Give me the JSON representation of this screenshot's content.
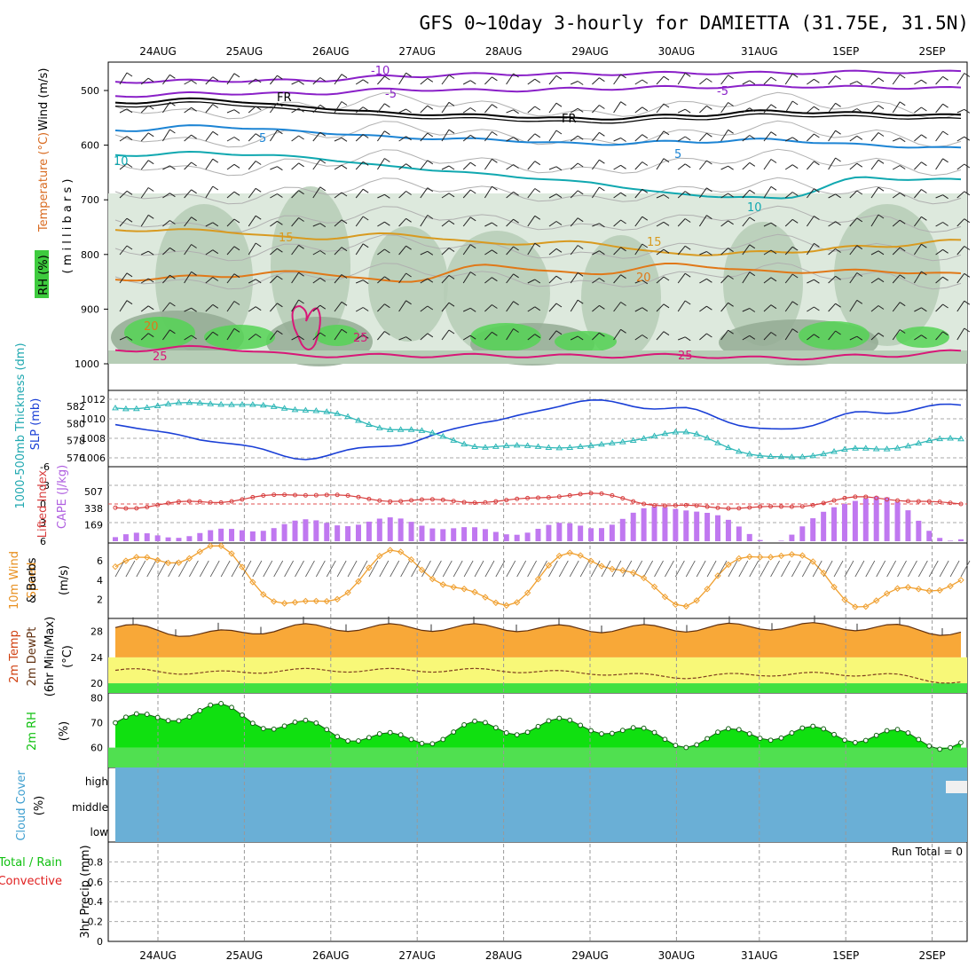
{
  "title": "GFS 0~10day 3-hourly for DAMIETTA (31.75E, 31.5N)",
  "dates": [
    "24AUG",
    "25AUG",
    "26AUG",
    "27AUG",
    "28AUG",
    "29AUG",
    "30AUG",
    "31AUG",
    "1SEP",
    "2SEP"
  ],
  "colors": {
    "rh_light": "#dde9dd",
    "rh_mid": "#b6cdb6",
    "rh_dark": "#94ab94",
    "rh_green": "#55d455",
    "slp": "#1a3fd6",
    "thickness": "#30b8b8",
    "lifted": "#d84040",
    "cape": "#c078f0",
    "wind10": "#f0a030",
    "temp_fill": "#f8a838",
    "temp_max": "#e85a10",
    "dew_fill": "#f8f878",
    "rh2m": "#10e010",
    "rh2m_base": "#50e050",
    "cloud": "#6aafd6"
  },
  "panels": {
    "upper": {
      "ylabel_rh": "RH (%)",
      "ylabel_temp": "Temperature (°C)",
      "ylabel_wind": "Wind (m/s)",
      "ylabel_levels": "( m i l l i b a r s )",
      "ticks": [
        "500",
        "600",
        "700",
        "800",
        "900",
        "1000"
      ],
      "contour_labels": {
        "m10": "-10",
        "m5a": "-5",
        "m5b": "-5",
        "fra": "FR",
        "frb": "FR",
        "p5a": "5",
        "p5b": "5",
        "p10a": "10",
        "p10b": "10",
        "p15a": "15",
        "p15b": "15",
        "p20a": "20",
        "p20b": "20",
        "p25a": "25",
        "p25b": "25",
        "p25c": "25"
      }
    },
    "slp": {
      "ylabel_thick": "1000-500mb Thickness (dm)",
      "ylabel_slp": "SLP (mb)",
      "ticks_left": [
        "582",
        "580",
        "578",
        "576"
      ],
      "ticks_right": [
        "1012",
        "1010",
        "1008",
        "1006"
      ]
    },
    "cape": {
      "ylabel_li": "Lifted Index",
      "ylabel_cape": "CAPE (J/kg)",
      "ticks_left": [
        "-6",
        "-3",
        "0",
        "3",
        "6"
      ],
      "ticks_right": [
        "507",
        "338",
        "169"
      ]
    },
    "wind10": {
      "ylabel_a": "10m Wind",
      "ylabel_b": "Speed",
      "ylabel_c": "& Barbs",
      "unit": "(m/s)",
      "ticks": [
        "6",
        "4",
        "2"
      ]
    },
    "temp2m": {
      "ylabel_a": "2m Temp",
      "ylabel_b": "2m DewPt",
      "ylabel_c": "(6hr Min/Max)",
      "unit": "(°C)",
      "ticks": [
        "28",
        "24",
        "20"
      ]
    },
    "rh2m": {
      "ylabel": "2m RH",
      "unit": "(%)",
      "ticks": [
        "80",
        "70",
        "60"
      ]
    },
    "cloud": {
      "ylabel": "Cloud Cover",
      "unit": "(%)",
      "ticks": [
        "high",
        "middle",
        "low"
      ]
    },
    "precip": {
      "ylabel_a": "Total / Rain",
      "ylabel_b": "Convective",
      "ylabel_c": "3hr Precip (mm)",
      "run_total": "Run Total = 0",
      "ticks": [
        "0.8",
        "0.6",
        "0.4",
        "0.2",
        "0"
      ]
    }
  },
  "chart_data": [
    {
      "type": "line",
      "name": "upper-air cross-section",
      "x": [
        "24AUG",
        "25AUG",
        "26AUG",
        "27AUG",
        "28AUG",
        "29AUG",
        "30AUG",
        "31AUG",
        "1SEP",
        "2SEP"
      ],
      "ylim": [
        1000,
        450
      ],
      "series": [
        {
          "name": "-10°C level (mb)",
          "values": [
            484,
            482,
            482,
            474,
            470,
            470,
            468,
            468,
            466,
            466
          ]
        },
        {
          "name": "-5°C level (mb)",
          "values": [
            510,
            505,
            506,
            498,
            500,
            497,
            494,
            492,
            494,
            496
          ]
        },
        {
          "name": "FR level (mb)",
          "values": [
            522,
            516,
            530,
            542,
            546,
            552,
            546,
            538,
            542,
            546
          ]
        },
        {
          "name": "5°C level (mb)",
          "values": [
            573,
            565,
            575,
            586,
            590,
            598,
            594,
            590,
            600,
            606
          ]
        },
        {
          "name": "10°C level (mb)",
          "values": [
            618,
            614,
            622,
            640,
            654,
            668,
            690,
            698,
            660,
            664
          ]
        },
        {
          "name": "15°C level (mb)",
          "values": [
            755,
            756,
            771,
            763,
            780,
            778,
            800,
            796,
            786,
            775
          ]
        },
        {
          "name": "20°C level (mb)",
          "values": [
            846,
            840,
            832,
            850,
            820,
            836,
            818,
            832,
            830,
            836
          ]
        },
        {
          "name": "25°C level (mb)",
          "values": [
            975,
            970,
            985,
            985,
            985,
            986,
            985,
            990,
            986,
            978
          ]
        }
      ]
    },
    {
      "type": "line",
      "name": "SLP and thickness",
      "x": [
        "24AUG",
        "25AUG",
        "26AUG",
        "27AUG",
        "28AUG",
        "29AUG",
        "30AUG",
        "31AUG",
        "1SEP",
        "2SEP"
      ],
      "series": [
        {
          "name": "SLP (mb)",
          "values": [
            1009.4,
            1007.8,
            1006.0,
            1007.4,
            1009.8,
            1011.8,
            1011.0,
            1008.8,
            1010.6,
            1011.4
          ]
        },
        {
          "name": "1000-500mb Thickness (dm)",
          "values": [
            581.8,
            582.4,
            581.7,
            579.4,
            577.3,
            577.3,
            578.9,
            576.0,
            577.0,
            578.2
          ]
        }
      ]
    },
    {
      "type": "bar",
      "name": "CAPE and Lifted Index",
      "x": [
        "24AUG",
        "25AUG",
        "26AUG",
        "27AUG",
        "28AUG",
        "29AUG",
        "30AUG",
        "31AUG",
        "1SEP",
        "2SEP"
      ],
      "series": [
        {
          "name": "CAPE (J/kg)",
          "values": [
            42,
            85,
            185,
            205,
            95,
            160,
            360,
            25,
            470,
            20
          ]
        },
        {
          "name": "Lifted Index",
          "values": [
            0.6,
            -0.4,
            -1.6,
            -0.6,
            -0.4,
            -1.6,
            0.4,
            0.6,
            -1.0,
            0.0
          ]
        }
      ],
      "ylim_li": [
        6,
        -6
      ],
      "ylim_cape": [
        0,
        760
      ]
    },
    {
      "type": "line",
      "name": "10m wind speed",
      "x": [
        "24AUG",
        "25AUG",
        "26AUG",
        "27AUG",
        "28AUG",
        "29AUG",
        "30AUG",
        "31AUG",
        "1SEP",
        "2SEP"
      ],
      "values": [
        5.4,
        7.0,
        1.0,
        6.4,
        1.6,
        6.6,
        2.0,
        7.2,
        1.8,
        4.0
      ],
      "ylim": [
        0,
        7.5
      ]
    },
    {
      "type": "area",
      "name": "2m temperature and dew point",
      "x": [
        "24AUG",
        "25AUG",
        "26AUG",
        "27AUG",
        "28AUG",
        "29AUG",
        "30AUG",
        "31AUG",
        "1SEP",
        "2SEP"
      ],
      "series": [
        {
          "name": "2m Temp",
          "values": [
            28.6,
            27.6,
            28.6,
            28.6,
            28.6,
            28.4,
            28.5,
            28.8,
            28.7,
            27.9
          ]
        },
        {
          "name": "2m DewPt",
          "values": [
            22.0,
            21.6,
            22.0,
            22.0,
            22.0,
            21.6,
            21.0,
            21.4,
            21.4,
            20.2
          ]
        }
      ],
      "ylim": [
        18.5,
        30
      ]
    },
    {
      "type": "area",
      "name": "2m relative humidity",
      "x": [
        "24AUG",
        "25AUG",
        "26AUG",
        "27AUG",
        "28AUG",
        "29AUG",
        "30AUG",
        "31AUG",
        "1SEP",
        "2SEP"
      ],
      "values": [
        70,
        75,
        68,
        63,
        68,
        69,
        63,
        66,
        65,
        62
      ],
      "ylim": [
        52,
        82
      ]
    },
    {
      "type": "bar",
      "name": "cloud cover",
      "x": [
        "high",
        "middle",
        "low"
      ],
      "values": [
        0,
        0,
        0
      ]
    },
    {
      "type": "bar",
      "name": "3hr precip",
      "x": [
        "24AUG",
        "25AUG",
        "26AUG",
        "27AUG",
        "28AUG",
        "29AUG",
        "30AUG",
        "31AUG",
        "1SEP",
        "2SEP"
      ],
      "values": [
        0,
        0,
        0,
        0,
        0,
        0,
        0,
        0,
        0,
        0
      ],
      "ylim": [
        0,
        1.0
      ]
    }
  ]
}
